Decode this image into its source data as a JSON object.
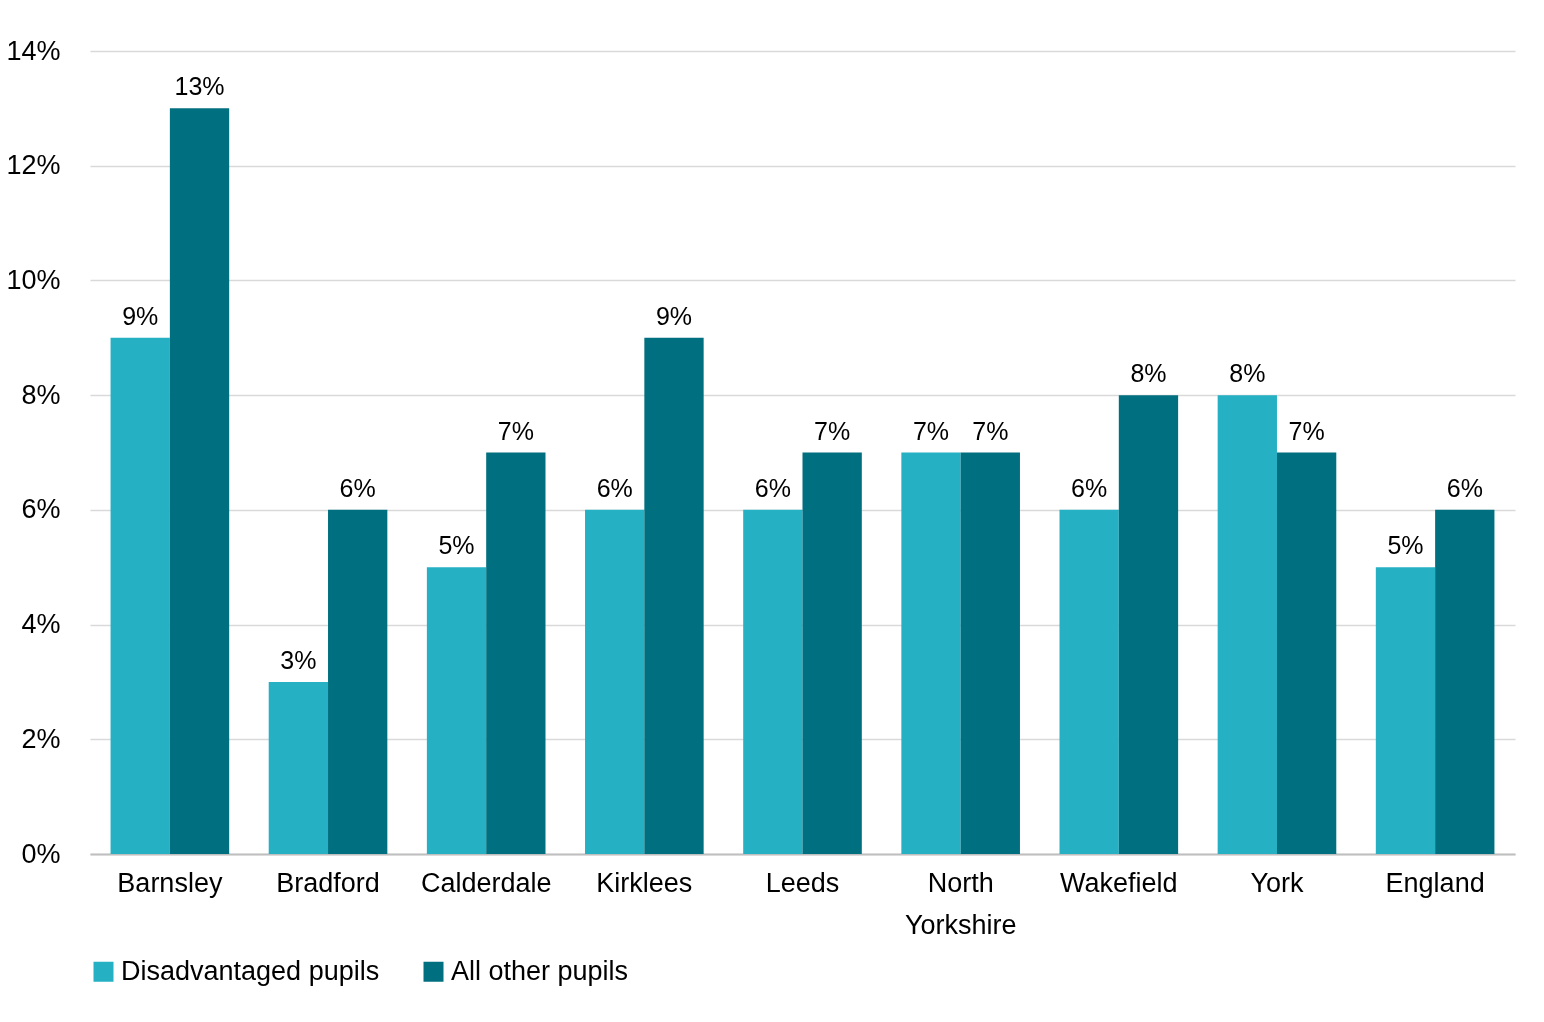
{
  "chart_data": {
    "type": "bar",
    "categories": [
      "Barnsley",
      "Bradford",
      "Calderdale",
      "Kirklees",
      "Leeds",
      "North Yorkshire",
      "Wakefield",
      "York",
      "England"
    ],
    "series": [
      {
        "name": "Disadvantaged pupils",
        "color": "#25b0c4",
        "values": [
          9,
          3,
          5,
          6,
          6,
          7,
          6,
          8,
          5
        ],
        "value_labels": [
          "9%",
          "3%",
          "5%",
          "6%",
          "6%",
          "7%",
          "6%",
          "8%",
          "5%"
        ]
      },
      {
        "name": "All other pupils",
        "color": "#006f7f",
        "values": [
          13,
          6,
          7,
          9,
          7,
          7,
          8,
          7,
          6
        ],
        "value_labels": [
          "13%",
          "6%",
          "7%",
          "9%",
          "7%",
          "7%",
          "8%",
          "7%",
          "6%"
        ]
      }
    ],
    "ylim": [
      0,
      14
    ],
    "yticks": [
      {
        "value": 0,
        "label": "0%"
      },
      {
        "value": 2,
        "label": "2%"
      },
      {
        "value": 4,
        "label": "4%"
      },
      {
        "value": 6,
        "label": "6%"
      },
      {
        "value": 8,
        "label": "8%"
      },
      {
        "value": 10,
        "label": "10%"
      },
      {
        "value": 12,
        "label": "12%"
      },
      {
        "value": 14,
        "label": "14%"
      }
    ],
    "grid": "y",
    "legend": "bottom"
  }
}
